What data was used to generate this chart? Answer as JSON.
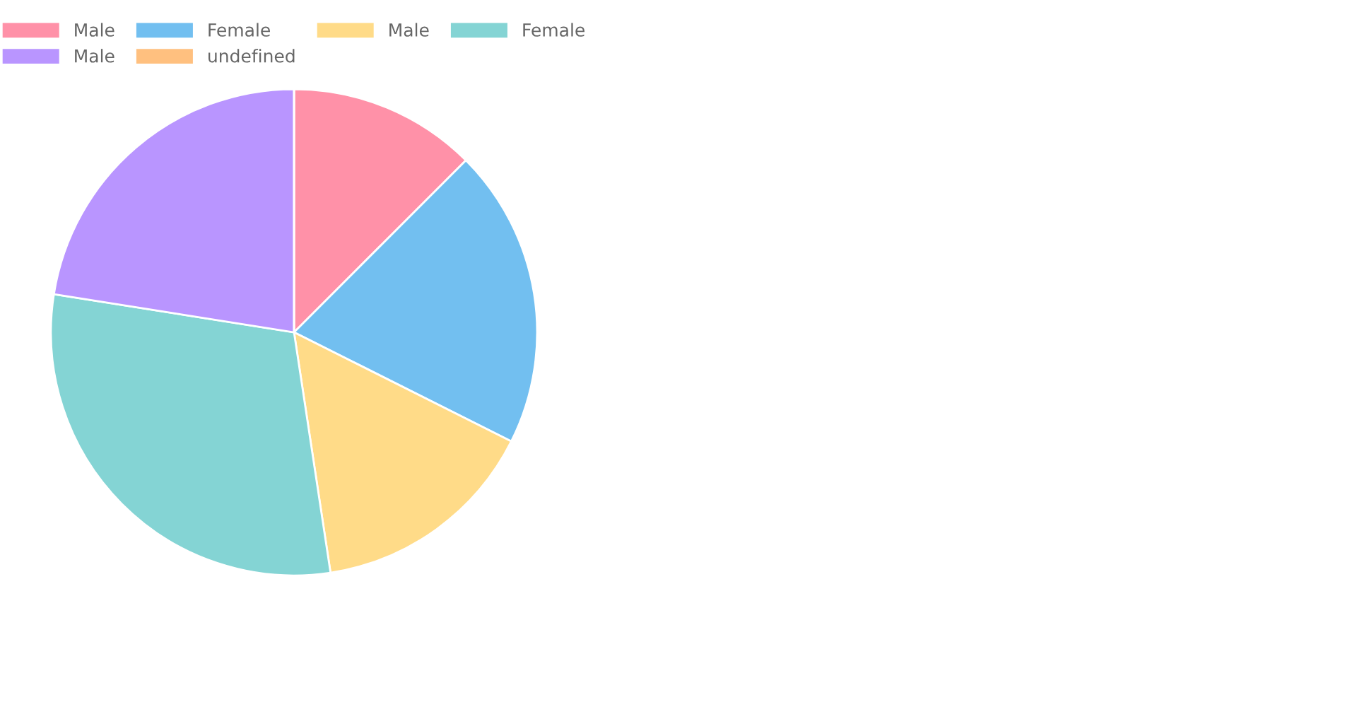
{
  "chart_data": {
    "type": "pie",
    "categories": [
      "Male",
      "Female",
      "Male",
      "Female",
      "Male",
      "undefined"
    ],
    "values": [
      12.5,
      19.9,
      15.2,
      29.9,
      22.5,
      0
    ],
    "colors": [
      "#ff91a8",
      "#72bff0",
      "#ffdb88",
      "#84d4d4",
      "#b995ff",
      "#ffc07f"
    ],
    "legend": "top"
  }
}
